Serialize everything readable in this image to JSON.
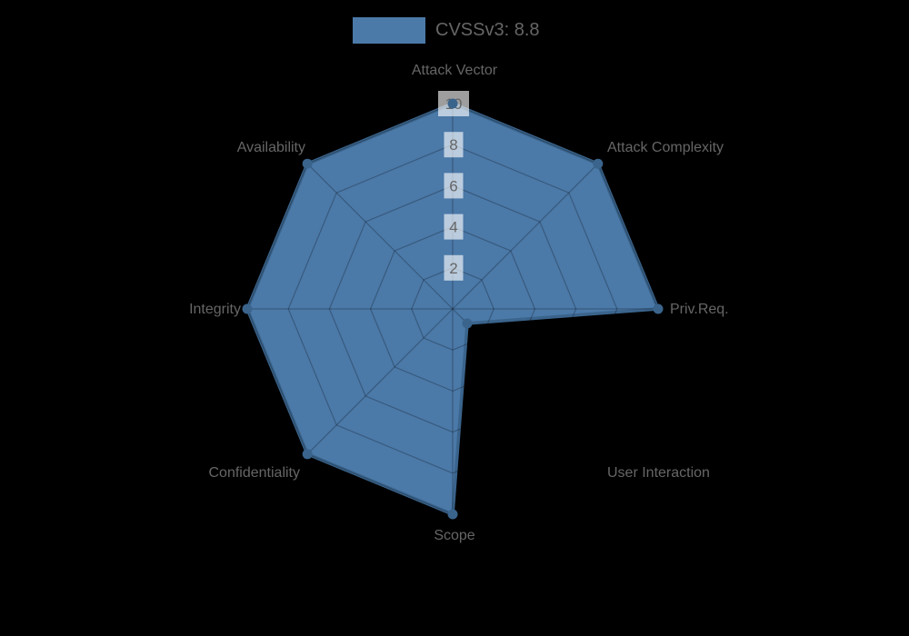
{
  "chart_data": {
    "type": "radar",
    "legend": {
      "label": "CVSSv3: 8.8",
      "position": "top"
    },
    "categories": [
      "Attack Vector",
      "Attack Complexity",
      "Priv.Req.",
      "User Interaction",
      "Scope",
      "Confidentiality",
      "Integrity",
      "Availability"
    ],
    "series": [
      {
        "name": "CVSSv3: 8.8",
        "values": [
          10,
          10,
          10,
          1,
          10,
          10,
          10,
          10
        ]
      }
    ],
    "axis": {
      "min": 0,
      "max": 10,
      "ticks": [
        2,
        4,
        6,
        8,
        10
      ]
    },
    "grid": {
      "shape": "polygon",
      "levels": 5,
      "visible": true
    },
    "colors": {
      "series_fill": "#4b79a8",
      "series_stroke": "#3a648c",
      "grid_line": "rgba(0,0,0,0.25)",
      "background": "#000000",
      "label_text": "#666666",
      "tick_text": "#666666",
      "tick_box": "rgba(255,255,255,0.62)"
    }
  }
}
